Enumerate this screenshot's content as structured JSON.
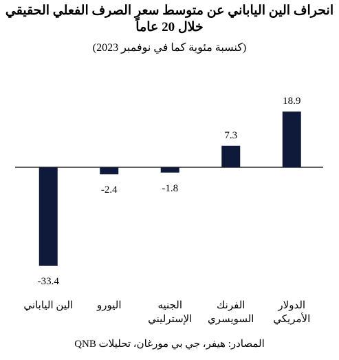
{
  "chart_data": {
    "type": "bar",
    "title": "انحراف الين الياباني عن متوسط سعر الصرف الفعلي الحقيقي",
    "title_line2": "خلال 20 عاماً",
    "subtitle": "(كنسبة مئوية كما في نوفمبر 2023)",
    "categories": [
      "الين الياباني",
      "اليورو",
      "الجنيه الإسترليني",
      "الفرنك السويسري",
      "الدولار الأمريكي"
    ],
    "values": [
      -33.4,
      -2.4,
      -1.8,
      7.3,
      18.9
    ],
    "color": "#0f1a3a",
    "source": "المصادر: هيفر، جي بي مورغان، تحليلات QNB"
  }
}
